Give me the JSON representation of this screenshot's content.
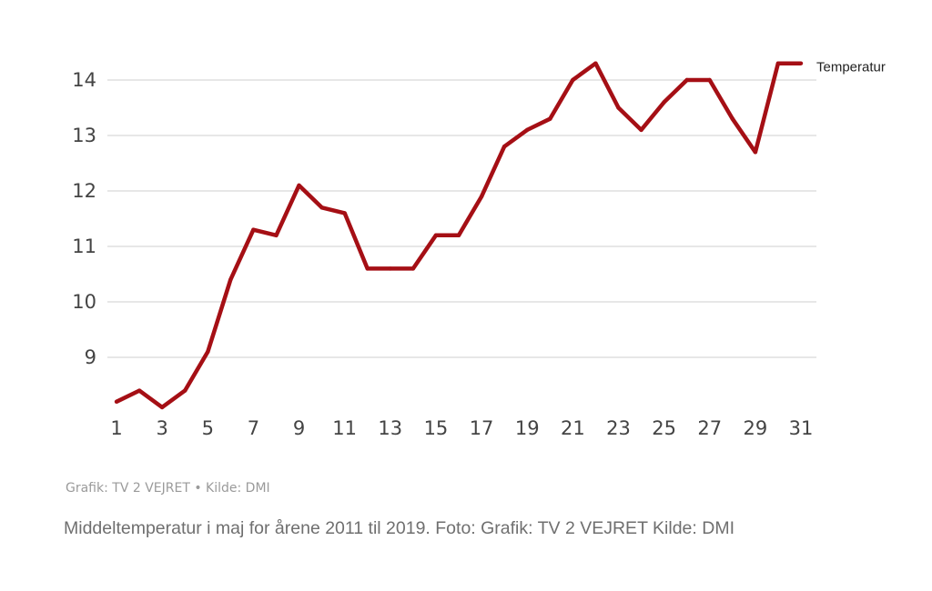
{
  "chart_data": {
    "type": "line",
    "x": [
      1,
      2,
      3,
      4,
      5,
      6,
      7,
      8,
      9,
      10,
      11,
      12,
      13,
      14,
      15,
      16,
      17,
      18,
      19,
      20,
      21,
      22,
      23,
      24,
      25,
      26,
      27,
      28,
      29,
      30,
      31
    ],
    "x_tick_labels": [
      "1",
      "3",
      "5",
      "7",
      "9",
      "11",
      "13",
      "15",
      "17",
      "19",
      "21",
      "23",
      "25",
      "27",
      "29",
      "31"
    ],
    "y_tick_labels": [
      "9",
      "10",
      "11",
      "12",
      "13",
      "14"
    ],
    "ylim": [
      8,
      14.5
    ],
    "grid": true,
    "series": [
      {
        "name": "Temperatur",
        "color": "#a50f15",
        "values": [
          8.2,
          8.4,
          8.1,
          8.4,
          9.1,
          10.4,
          11.3,
          11.2,
          12.1,
          11.7,
          11.6,
          10.6,
          10.6,
          10.6,
          11.2,
          11.2,
          11.9,
          12.8,
          13.1,
          13.3,
          14.0,
          14.3,
          13.5,
          13.1,
          13.6,
          14.0,
          14.0,
          13.3,
          12.7,
          14.3,
          14.3
        ]
      }
    ]
  },
  "credit": "Grafik: TV 2 VEJRET • Kilde: DMI",
  "caption": "Middeltemperatur i maj for årene 2011 til 2019. Foto: Grafik: TV 2 VEJRET Kilde: DMI"
}
